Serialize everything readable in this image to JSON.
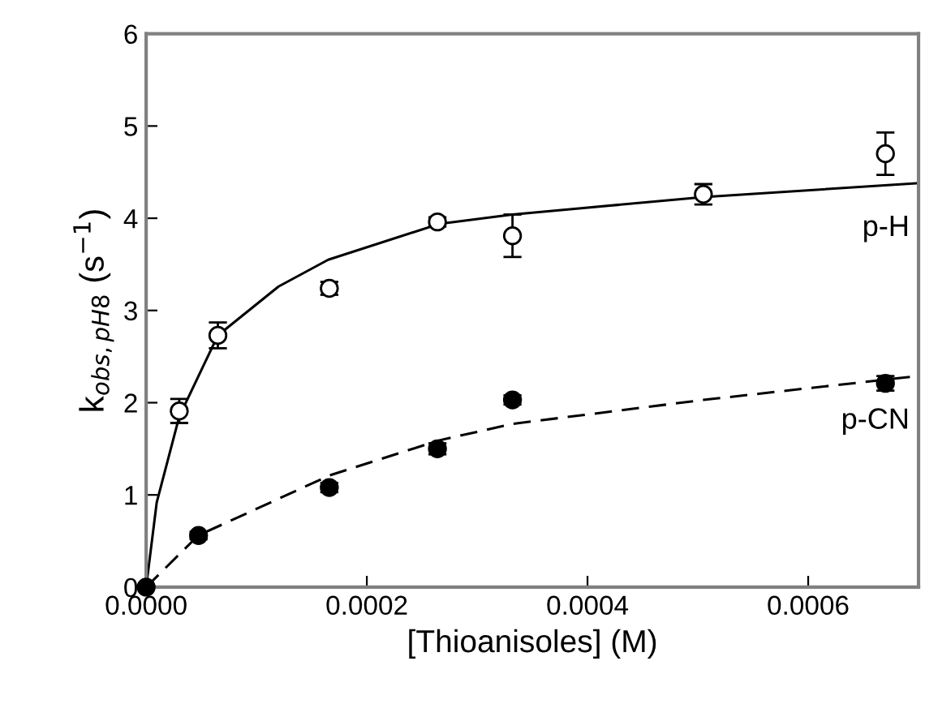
{
  "chart_data": {
    "type": "scatter",
    "xlabel": "[Thioanisoles] (M)",
    "ylabel": "k$_{obs,pH8}$ (s$^{−1}$)",
    "xlim": [
      0,
      0.0007
    ],
    "ylim": [
      0,
      6
    ],
    "xticks": [
      {
        "value": 0,
        "label": "0.0000"
      },
      {
        "value": 0.0002,
        "label": "0.0002"
      },
      {
        "value": 0.0004,
        "label": "0.0004"
      },
      {
        "value": 0.0006,
        "label": "0.0006"
      }
    ],
    "yticks": [
      0,
      1,
      2,
      3,
      4,
      5,
      6
    ],
    "grid": false,
    "legend": false,
    "series": [
      {
        "type": "scatter",
        "marker": "circle",
        "color": "#ffffff",
        "x": [
          3e-05,
          6.5e-05,
          0.000166,
          0.000264,
          0.000332,
          0.000505,
          0.00067
        ],
        "values": [
          1.91,
          2.73,
          3.24,
          3.96,
          3.81,
          4.26,
          4.7
        ],
        "errors": [
          0.13,
          0.14,
          0.07,
          0.05,
          0.23,
          0.11,
          0.23
        ]
      },
      {
        "type": "scatter",
        "marker": "circle",
        "color": "#000000",
        "x": [
          0,
          4.75e-05,
          0.000166,
          0.000264,
          0.000332,
          0.00067
        ],
        "values": [
          0,
          0.56,
          1.08,
          1.5,
          2.03,
          2.21
        ],
        "errors": [
          null,
          0.04,
          0.05,
          0.06,
          0.05,
          0.08
        ]
      },
      {
        "type": "line",
        "name": "p-H",
        "marker": "none",
        "color": "#000000",
        "line_style": "solid",
        "x": [
          0,
          9.6e-06,
          3e-05,
          6.5e-05,
          0.00012,
          0.000165,
          0.000266,
          0.000332,
          0.000505,
          0.0007
        ],
        "values": [
          0,
          0.92,
          1.85,
          2.73,
          3.26,
          3.55,
          3.94,
          4.04,
          4.23,
          4.38
        ]
      },
      {
        "type": "line",
        "name": "p-CN",
        "marker": "none",
        "color": "#000000",
        "line_style": "dashed",
        "x": [
          0,
          4.72e-05,
          0.000166,
          0.000265,
          0.000332,
          0.000505,
          0.0007
        ],
        "values": [
          0,
          0.56,
          1.21,
          1.59,
          1.77,
          2.03,
          2.29
        ]
      }
    ]
  }
}
